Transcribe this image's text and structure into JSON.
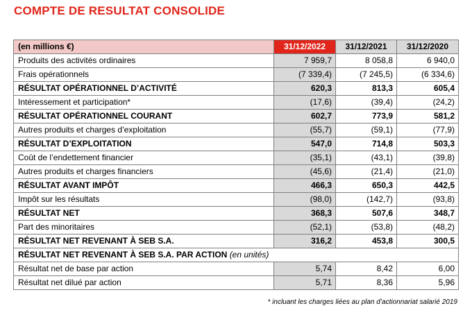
{
  "title": "COMPTE DE RESULTAT CONSOLIDE",
  "table": {
    "header": {
      "label": "(en millions €)",
      "years": [
        "31/12/2022",
        "31/12/2021",
        "31/12/2020"
      ]
    },
    "rows": [
      {
        "label": "Produits des activités ordinaires",
        "v1": "7 959,7",
        "v2": "8 058,8",
        "v3": "6 940,0"
      },
      {
        "label": "Frais opérationnels",
        "v1": "(7 339,4)",
        "v2": "(7 245,5)",
        "v3": "(6 334,6)"
      },
      {
        "label": "RÉSULTAT OPÉRATIONNEL D’ACTIVITÉ",
        "v1": "620,3",
        "v2": "813,3",
        "v3": "605,4"
      },
      {
        "label": "Intéressement et participation*",
        "v1": "(17,6)",
        "v2": "(39,4)",
        "v3": "(24,2)"
      },
      {
        "label": "RÉSULTAT OPÉRATIONNEL COURANT",
        "v1": "602,7",
        "v2": "773,9",
        "v3": "581,2"
      },
      {
        "label": "Autres produits et charges d’exploitation",
        "v1": "(55,7)",
        "v2": "(59,1)",
        "v3": "(77,9)"
      },
      {
        "label": "RÉSULTAT D’EXPLOITATION",
        "v1": "547,0",
        "v2": "714,8",
        "v3": "503,3"
      },
      {
        "label": "Coût de l’endettement financier",
        "v1": "(35,1)",
        "v2": "(43,1)",
        "v3": "(39,8)"
      },
      {
        "label": "Autres produits et charges financiers",
        "v1": "(45,6)",
        "v2": "(21,4)",
        "v3": "(21,0)"
      },
      {
        "label": "RÉSULTAT AVANT IMPÔT",
        "v1": "466,3",
        "v2": "650,3",
        "v3": "442,5"
      },
      {
        "label": "Impôt sur les résultats",
        "v1": "(98,0)",
        "v2": "(142,7)",
        "v3": "(93,8)"
      },
      {
        "label": "RÉSULTAT NET",
        "v1": "368,3",
        "v2": "507,6",
        "v3": "348,7"
      },
      {
        "label": "Part des minoritaires",
        "v1": "(52,1)",
        "v2": "(53,8)",
        "v3": "(48,2)"
      },
      {
        "label": "RÉSULTAT NET REVENANT À SEB S.A.",
        "v1": "316,2",
        "v2": "453,8",
        "v3": "300,5"
      },
      {
        "label": "RÉSULTAT NET REVENANT À SEB S.A. PAR ACTION",
        "suffix": "(en unités)"
      },
      {
        "label": "Résultat net de base par action",
        "v1": "5,74",
        "v2": "8,42",
        "v3": "6,00"
      },
      {
        "label": "Résultat net dilué par action",
        "v1": "5,71",
        "v2": "8,36",
        "v3": "5,96"
      }
    ]
  },
  "footnote": "* incluant les charges liées au plan d’actionnariat salarié 2019"
}
